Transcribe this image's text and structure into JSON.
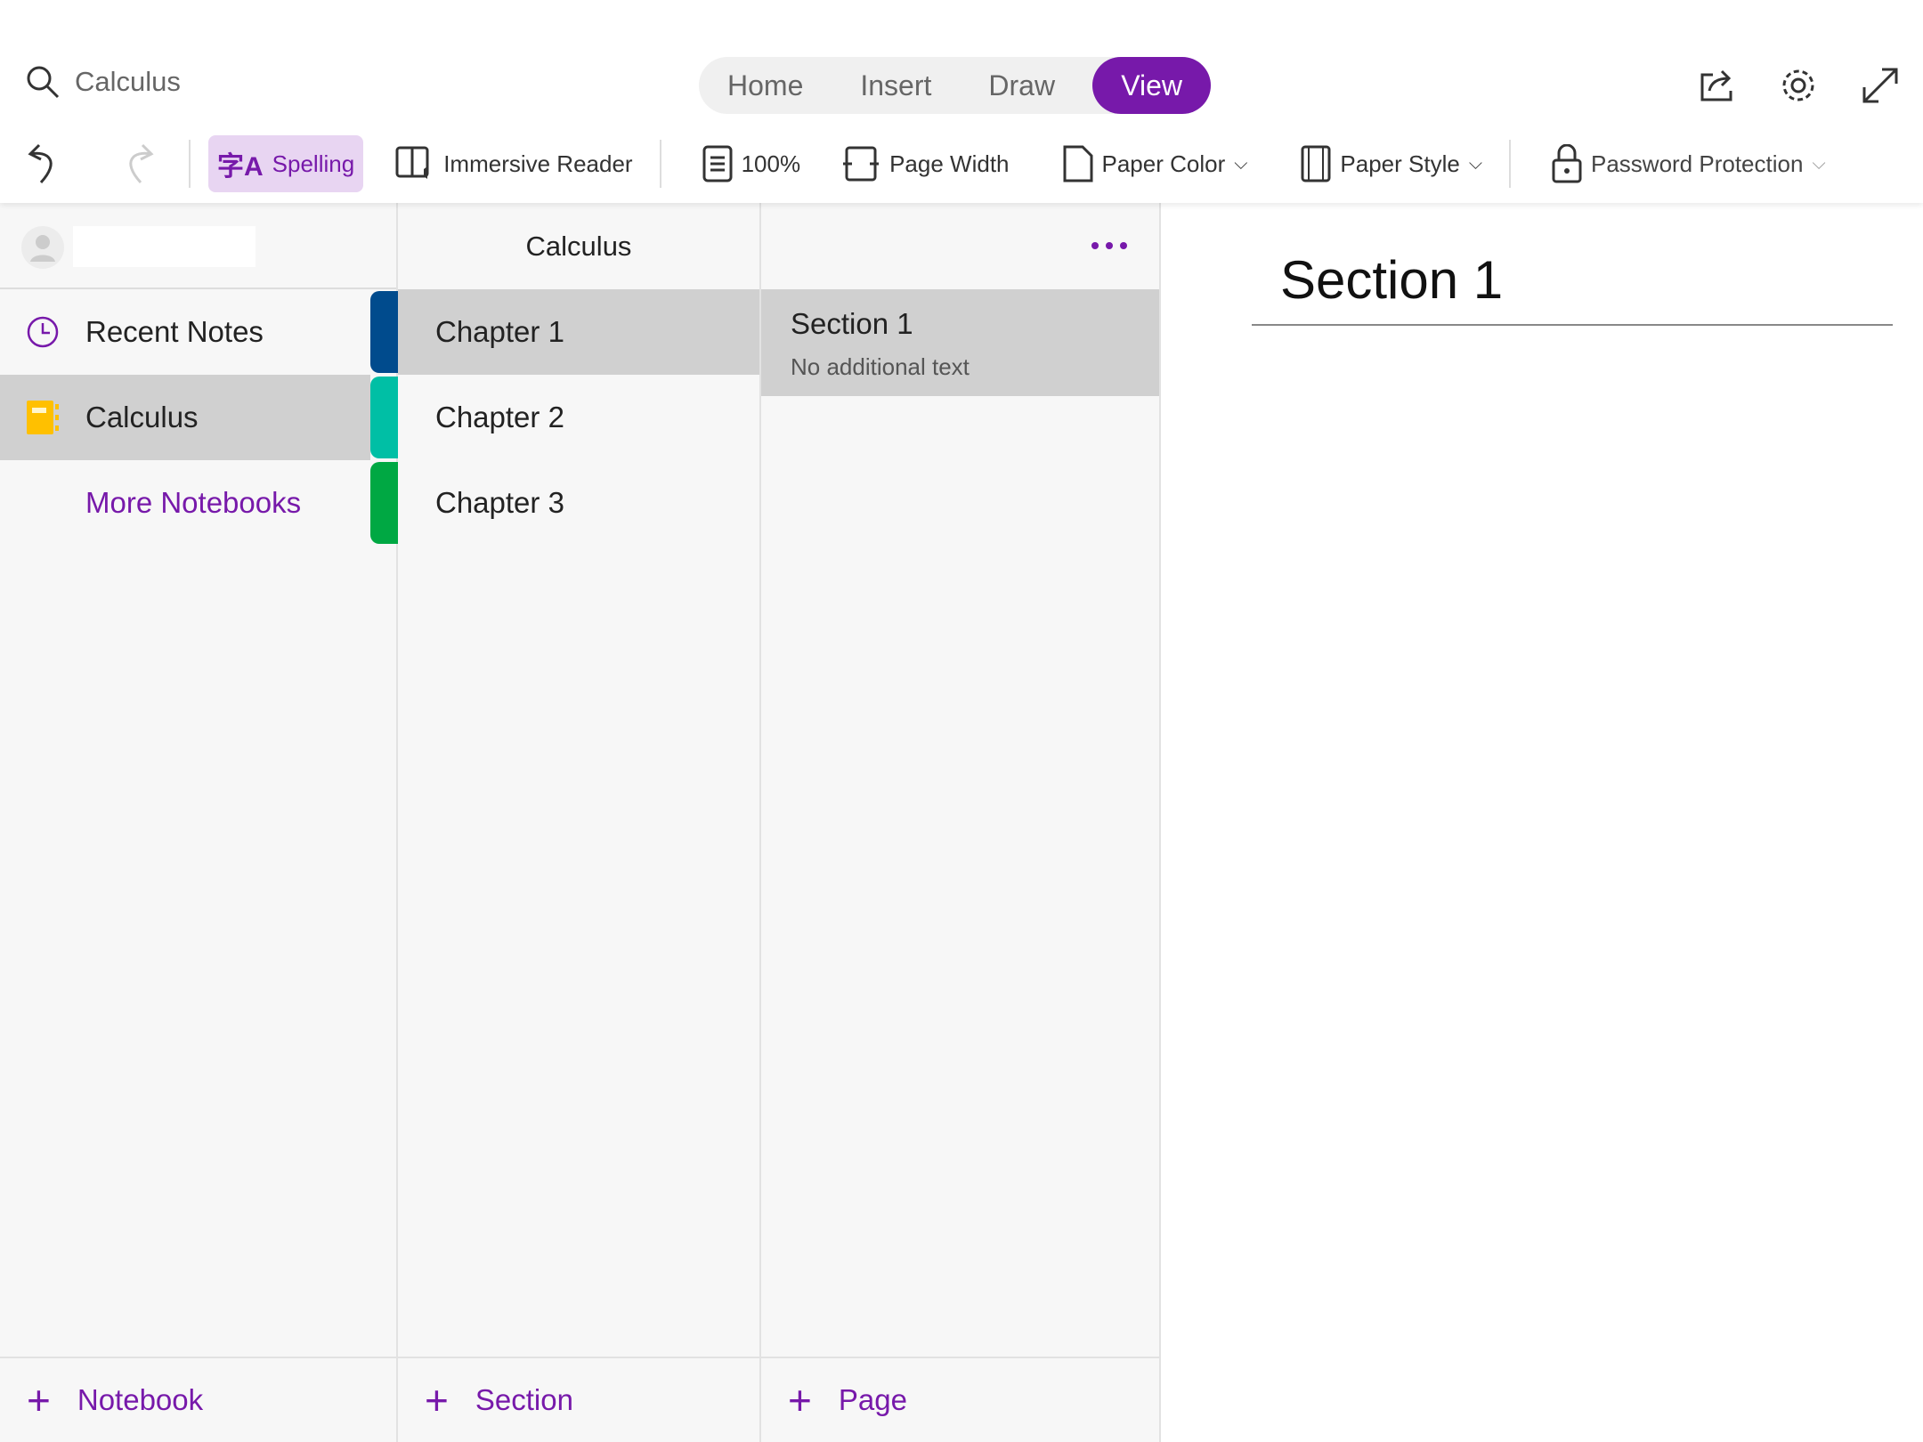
{
  "search": {
    "value": "Calculus",
    "icon": "search-icon"
  },
  "tabs": [
    {
      "label": "Home"
    },
    {
      "label": "Insert"
    },
    {
      "label": "Draw"
    },
    {
      "label": "View",
      "active": true
    }
  ],
  "toolbar": {
    "spelling": "Spelling",
    "immersive_reader": "Immersive Reader",
    "zoom": "100%",
    "page_width": "Page Width",
    "paper_color": "Paper Color",
    "paper_style": "Paper Style",
    "password_protection": "Password Protection"
  },
  "sidebar": {
    "recent_notes": "Recent Notes",
    "notebook": "Calculus",
    "more_notebooks": "More Notebooks",
    "add_notebook": "Notebook"
  },
  "sections": {
    "title": "Calculus",
    "items": [
      {
        "label": "Chapter 1",
        "color": "#004b8d"
      },
      {
        "label": "Chapter 2",
        "color": "#00bfa5"
      },
      {
        "label": "Chapter 3",
        "color": "#00a843"
      }
    ],
    "add_label": "Section"
  },
  "pages": {
    "items": [
      {
        "title": "Section 1",
        "preview": "No additional text"
      }
    ],
    "add_label": "Page"
  },
  "content": {
    "title": "Section 1"
  },
  "colors": {
    "accent": "#7719aa",
    "selected": "#d0d0d0"
  }
}
